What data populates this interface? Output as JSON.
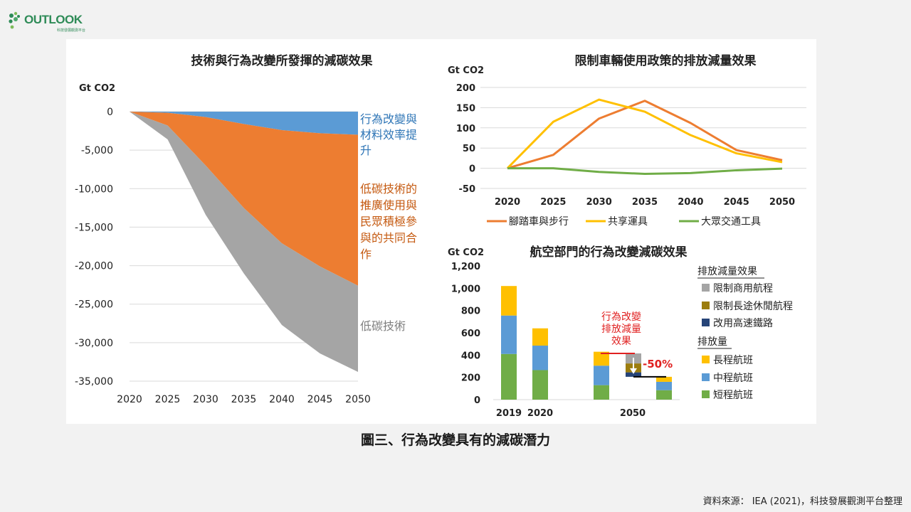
{
  "logo": {
    "word": "OUTLOOK",
    "sub": "科技發展觀測平台"
  },
  "caption": "圖三、行為改變具有的減碳潛力",
  "source": "資料來源： IEA (2021)，科技發展觀測平台整理",
  "colors": {
    "blue": "#5b9bd5",
    "orange": "#ed7d31",
    "gray": "#a5a5a5",
    "yellow": "#ffc000",
    "green": "#70ad47",
    "darkblue": "#264478",
    "olive": "#9c7d0e",
    "red": "#e02020"
  },
  "chart_data": [
    {
      "type": "area",
      "title": "技術與行為改變所發揮的減碳效果",
      "ylabel": "Gt CO2",
      "x": [
        2020,
        2025,
        2030,
        2035,
        2040,
        2045,
        2050
      ],
      "ylim": [
        -35000,
        0
      ],
      "yticks": [
        "0",
        "-5,000",
        "-10,000",
        "-15,000",
        "-20,000",
        "-25,000",
        "-30,000",
        "-35,000"
      ],
      "series": [
        {
          "name": "行為改變與材料效率提升",
          "values": [
            0,
            -150,
            -700,
            -1600,
            -2400,
            -2800,
            -3000
          ]
        },
        {
          "name": "低碳技術的推廣使用與民眾積極參與的共同合作",
          "values": [
            0,
            -1650,
            -6300,
            -10900,
            -14700,
            -17300,
            -19600
          ]
        },
        {
          "name": "低碳技術",
          "values": [
            0,
            -1800,
            -6400,
            -8500,
            -10600,
            -11300,
            -11200
          ]
        }
      ],
      "labels": {
        "blue": [
          "行為改變與",
          "材料效率提",
          "升"
        ],
        "orange": [
          "低碳技術的",
          "推廣使用與",
          "民眾積極參",
          "與的共同合",
          "作"
        ],
        "gray": [
          "低碳技術"
        ]
      }
    },
    {
      "type": "line",
      "title": "限制車輛使用政策的排放減量效果",
      "ylabel": "Gt CO2",
      "x": [
        2020,
        2025,
        2030,
        2035,
        2040,
        2045,
        2050
      ],
      "ylim": [
        -50,
        200
      ],
      "yticks": [
        "200",
        "150",
        "100",
        "50",
        "0",
        "-50"
      ],
      "grid": true,
      "legend": "bottom",
      "series": [
        {
          "name": "腳踏車與步行",
          "values": [
            0,
            33,
            123,
            167,
            112,
            45,
            20
          ]
        },
        {
          "name": "共享運具",
          "values": [
            0,
            115,
            170,
            140,
            82,
            37,
            15
          ]
        },
        {
          "name": "大眾交通工具",
          "values": [
            0,
            0,
            -9,
            -14,
            -12,
            -5,
            -1
          ]
        }
      ]
    },
    {
      "type": "bar",
      "title": "航空部門的行為改變減碳效果",
      "ylabel": "Gt CO2",
      "categories": [
        "2019",
        "2020",
        "2050"
      ],
      "ylim": [
        0,
        1200
      ],
      "yticks": [
        "1,200",
        "1,000",
        "800",
        "600",
        "400",
        "200",
        "0"
      ],
      "emission_bars": [
        {
          "label": "2019",
          "short": 410,
          "medium": 345,
          "long": 265
        },
        {
          "label": "2020",
          "short": 265,
          "medium": 220,
          "long": 155
        },
        {
          "label": "2050",
          "short": 130,
          "medium": 175,
          "long": 125
        },
        {
          "label": "",
          "short": 85,
          "medium": 75,
          "long": 45
        }
      ],
      "reduction_bar": {
        "rail": 40,
        "long_leisure": 80,
        "business": 90
      },
      "annotation": [
        "行為改變",
        "排放減量",
        "效果"
      ],
      "percent": "-50%",
      "legend_title_1": "排放減量效果",
      "legend_title_2": "排放量",
      "legend": [
        "限制商用航程",
        "限制長途休閒航程",
        "改用高速鐵路",
        "長程航班",
        "中程航班",
        "短程航班"
      ]
    }
  ]
}
